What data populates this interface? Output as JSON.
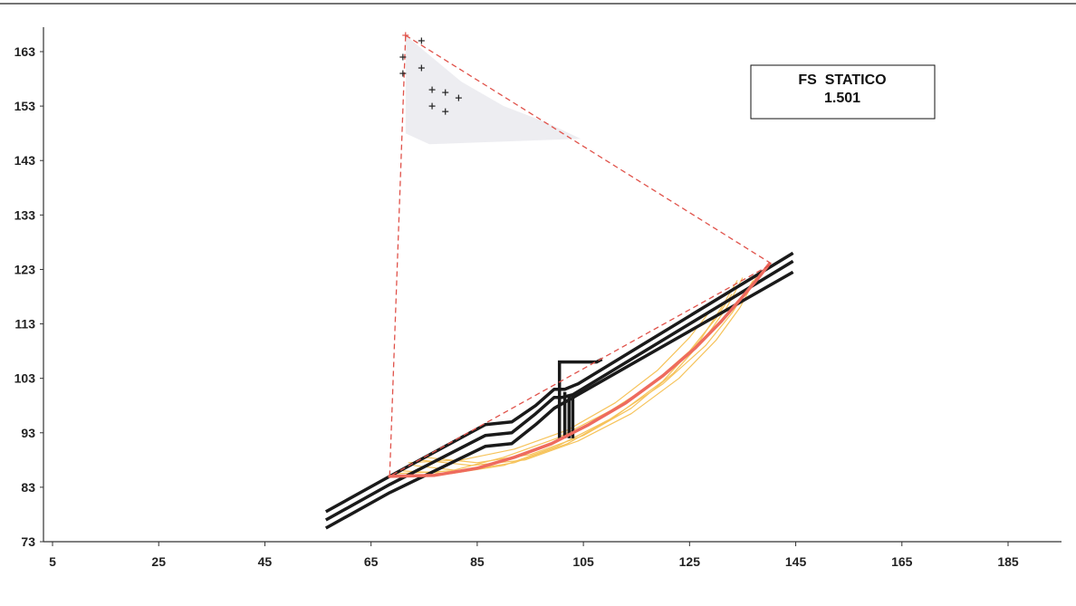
{
  "chart_data": {
    "type": "diagram",
    "title": "",
    "xlabel": "",
    "ylabel": "",
    "xlim": [
      5,
      195
    ],
    "ylim": [
      73,
      168
    ],
    "x_ticks": [
      5,
      25,
      45,
      65,
      85,
      105,
      125,
      145,
      165,
      185
    ],
    "y_ticks": [
      73,
      83,
      93,
      103,
      113,
      123,
      133,
      143,
      153,
      163
    ],
    "result_box": {
      "label": "FS  STATICO",
      "value": "1.501"
    },
    "colors": {
      "profile": "#1a1a1a",
      "critical_surface": "#ee6b5e",
      "trial_surfaces": "#f6c35a",
      "center_triangle": "#e0524a",
      "center_points": "#222222",
      "center_cloud": "#e8e8ee"
    },
    "profile_lines": [
      [
        [
          56.5,
          78.5
        ],
        [
          68.5,
          85.0
        ],
        [
          86.5,
          94.5
        ],
        [
          91.5,
          95.0
        ],
        [
          96.0,
          98.0
        ],
        [
          99.5,
          101.0
        ],
        [
          101.5,
          101.0
        ],
        [
          104.0,
          102.0
        ],
        [
          144.5,
          126.0
        ]
      ],
      [
        [
          56.5,
          77.0
        ],
        [
          68.5,
          83.5
        ],
        [
          86.5,
          92.5
        ],
        [
          91.5,
          93.0
        ],
        [
          96.0,
          96.5
        ],
        [
          99.5,
          99.5
        ],
        [
          101.0,
          99.5
        ],
        [
          103.0,
          100.0
        ],
        [
          144.5,
          124.5
        ]
      ],
      [
        [
          56.5,
          75.5
        ],
        [
          68.5,
          82.0
        ],
        [
          86.5,
          90.5
        ],
        [
          91.5,
          91.0
        ],
        [
          96.0,
          94.5
        ],
        [
          99.5,
          97.5
        ],
        [
          144.5,
          122.5
        ]
      ]
    ],
    "wall_segments": [
      [
        [
          100.5,
          92.0
        ],
        [
          100.5,
          106.0
        ],
        [
          107.5,
          106.0
        ],
        [
          108.5,
          106.5
        ]
      ],
      [
        [
          101.5,
          92.0
        ],
        [
          101.5,
          100.5
        ]
      ],
      [
        [
          102.3,
          92.0
        ],
        [
          102.3,
          100.0
        ]
      ],
      [
        [
          103.0,
          92.0
        ],
        [
          103.0,
          100.0
        ]
      ]
    ],
    "critical_surface": {
      "points": [
        [
          68.5,
          85.0
        ],
        [
          77.0,
          85.2
        ],
        [
          85.0,
          86.5
        ],
        [
          92.0,
          88.5
        ],
        [
          99.0,
          91.0
        ],
        [
          106.0,
          94.5
        ],
        [
          113.0,
          98.5
        ],
        [
          120.0,
          103.5
        ],
        [
          126.0,
          108.5
        ],
        [
          131.0,
          113.5
        ],
        [
          135.0,
          118.0
        ],
        [
          138.0,
          121.5
        ],
        [
          140.0,
          124.0
        ]
      ]
    },
    "trial_surfaces": [
      [
        [
          71.0,
          86.0
        ],
        [
          80.0,
          85.5
        ],
        [
          90.0,
          87.0
        ],
        [
          100.0,
          90.5
        ],
        [
          110.0,
          95.5
        ],
        [
          120.0,
          102.0
        ],
        [
          128.0,
          109.0
        ],
        [
          133.0,
          115.0
        ],
        [
          137.0,
          121.0
        ]
      ],
      [
        [
          73.0,
          87.0
        ],
        [
          82.0,
          86.0
        ],
        [
          92.0,
          87.5
        ],
        [
          102.0,
          91.0
        ],
        [
          111.0,
          96.0
        ],
        [
          120.0,
          102.5
        ],
        [
          127.0,
          110.0
        ],
        [
          131.0,
          116.0
        ],
        [
          134.0,
          121.0
        ]
      ],
      [
        [
          70.0,
          85.5
        ],
        [
          80.0,
          86.0
        ],
        [
          90.0,
          88.5
        ],
        [
          100.0,
          92.0
        ],
        [
          110.0,
          97.0
        ],
        [
          118.0,
          102.0
        ],
        [
          125.0,
          108.0
        ],
        [
          130.0,
          114.0
        ],
        [
          133.0,
          118.5
        ]
      ],
      [
        [
          75.0,
          88.5
        ],
        [
          85.0,
          87.5
        ],
        [
          95.0,
          89.0
        ],
        [
          105.0,
          92.5
        ],
        [
          114.0,
          97.5
        ],
        [
          122.0,
          104.0
        ],
        [
          128.0,
          110.5
        ],
        [
          132.0,
          116.0
        ],
        [
          135.0,
          121.5
        ]
      ],
      [
        [
          72.0,
          87.5
        ],
        [
          82.0,
          88.0
        ],
        [
          92.0,
          90.0
        ],
        [
          102.0,
          93.5
        ],
        [
          111.0,
          98.5
        ],
        [
          119.0,
          104.5
        ],
        [
          125.0,
          110.5
        ],
        [
          129.0,
          115.5
        ]
      ],
      [
        [
          74.0,
          88.0
        ],
        [
          84.0,
          87.0
        ],
        [
          94.0,
          88.0
        ],
        [
          104.0,
          91.5
        ],
        [
          114.0,
          96.5
        ],
        [
          123.0,
          103.0
        ],
        [
          130.0,
          110.0
        ],
        [
          134.5,
          116.0
        ],
        [
          137.5,
          121.5
        ]
      ]
    ],
    "center_triangle": [
      [
        71.5,
        166.0
      ],
      [
        140.5,
        124.0
      ],
      [
        68.5,
        85.0
      ]
    ],
    "center_cloud": [
      [
        71.5,
        166.0
      ],
      [
        82.0,
        157.5
      ],
      [
        90.0,
        153.0
      ],
      [
        98.0,
        150.0
      ],
      [
        104.5,
        147.0
      ],
      [
        76.0,
        146.0
      ],
      [
        71.5,
        148.0
      ]
    ],
    "center_points": [
      [
        71.5,
        166.0
      ],
      [
        74.5,
        165.0
      ],
      [
        71.0,
        162.0
      ],
      [
        74.5,
        160.0
      ],
      [
        71.0,
        159.0
      ],
      [
        76.5,
        156.0
      ],
      [
        79.0,
        155.5
      ],
      [
        81.5,
        154.5
      ],
      [
        76.5,
        153.0
      ],
      [
        79.0,
        152.0
      ]
    ]
  }
}
